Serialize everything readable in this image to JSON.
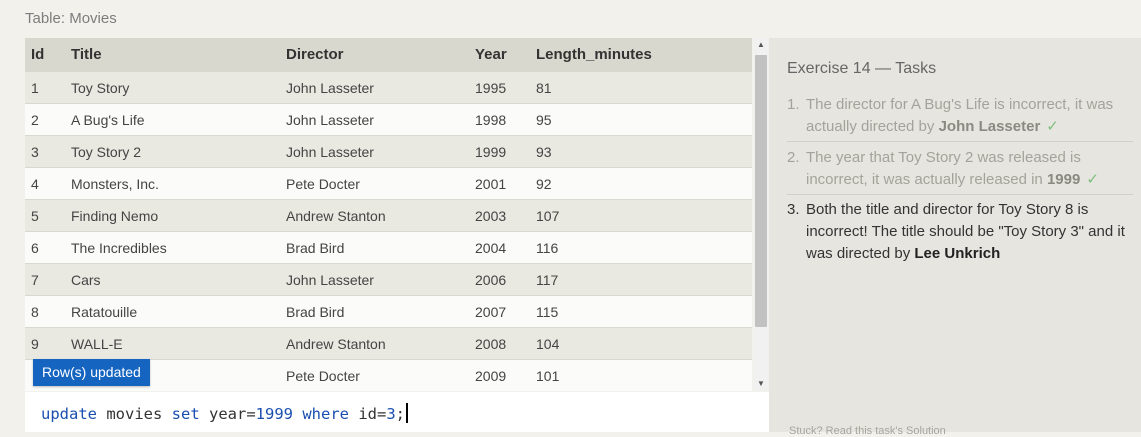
{
  "table": {
    "caption": "Table: Movies",
    "columns": [
      "Id",
      "Title",
      "Director",
      "Year",
      "Length_minutes"
    ],
    "rows": [
      [
        "1",
        "Toy Story",
        "John Lasseter",
        "1995",
        "81"
      ],
      [
        "2",
        "A Bug's Life",
        "John Lasseter",
        "1998",
        "95"
      ],
      [
        "3",
        "Toy Story 2",
        "John Lasseter",
        "1999",
        "93"
      ],
      [
        "4",
        "Monsters, Inc.",
        "Pete Docter",
        "2001",
        "92"
      ],
      [
        "5",
        "Finding Nemo",
        "Andrew Stanton",
        "2003",
        "107"
      ],
      [
        "6",
        "The Incredibles",
        "Brad Bird",
        "2004",
        "116"
      ],
      [
        "7",
        "Cars",
        "John Lasseter",
        "2006",
        "117"
      ],
      [
        "8",
        "Ratatouille",
        "Brad Bird",
        "2007",
        "115"
      ],
      [
        "9",
        "WALL-E",
        "Andrew Stanton",
        "2008",
        "104"
      ],
      [
        "",
        "",
        "Pete Docter",
        "2009",
        "101"
      ]
    ]
  },
  "toast": {
    "text": "Row(s) updated"
  },
  "editor": {
    "tokens": {
      "kw_update": "update",
      "t_movies": " movies ",
      "kw_set": "set",
      "t_year": " year=",
      "n_1999": "1999",
      "t_sp": " ",
      "kw_where": "where",
      "t_id": " id=",
      "n_3": "3",
      "t_semi": ";"
    }
  },
  "tasks": {
    "heading": "Exercise 14 — Tasks",
    "items": [
      {
        "number": "1.",
        "text": "The director for A Bug's Life is incorrect, it was actually directed by ",
        "highlight": "John Lasseter",
        "check": "✓",
        "status": "done"
      },
      {
        "number": "2.",
        "text": "The year that Toy Story 2 was released is incorrect, it was actually released in ",
        "highlight": "1999",
        "check": "✓",
        "status": "done"
      },
      {
        "number": "3.",
        "text": "Both the title and director for Toy Story 8 is incorrect! The title should be \"Toy Story 3\" and it was directed by ",
        "highlight": "Lee Unkrich",
        "status": "active"
      }
    ],
    "footer": "Stuck? Read this task's Solution"
  },
  "colors": {
    "header_bg": "#d9d8cf",
    "toast_bg": "#1565c0",
    "keyword": "#1a4fb0",
    "check": "#7fbf7f"
  }
}
